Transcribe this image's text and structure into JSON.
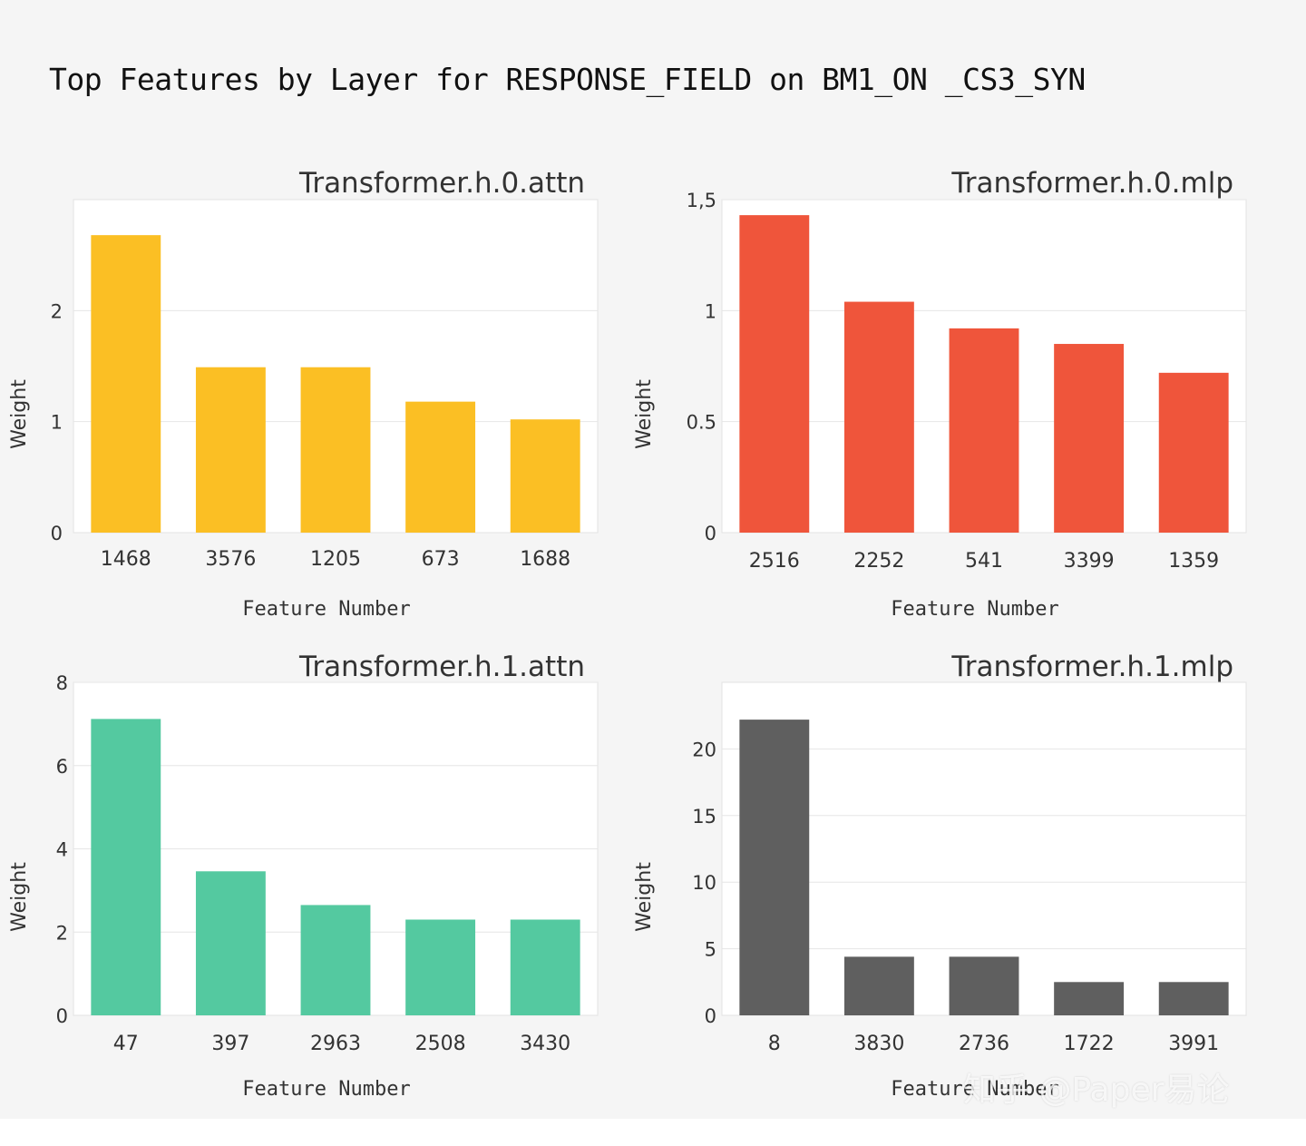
{
  "title": "Top Features by Layer for RESPONSE_FIELD on BM1_ON _CS3_SYN",
  "watermark": "知乎 @Paper易论",
  "colors": {
    "background": "#f5f5f5",
    "plot_bg": "#ffffff",
    "grid": "#e6e6e6",
    "text": "#333333"
  },
  "chart_data": [
    {
      "type": "bar",
      "title": "Transformer.h.0.attn",
      "xlabel": "Feature Number",
      "ylabel": "Weight",
      "categories": [
        "1468",
        "3576",
        "1205",
        "673",
        "1688"
      ],
      "values": [
        2.68,
        1.49,
        1.49,
        1.18,
        1.02
      ],
      "ylim": [
        0,
        3.0
      ],
      "yticks": [
        0,
        1,
        2
      ],
      "ytick_labels": [
        "0",
        "1",
        "2"
      ],
      "color": "#fbbf24",
      "grid": true
    },
    {
      "type": "bar",
      "title": "Transformer.h.0.mlp",
      "xlabel": "Feature Number",
      "ylabel": "Weight",
      "categories": [
        "2516",
        "2252",
        "541",
        "3399",
        "1359"
      ],
      "values": [
        1.43,
        1.04,
        0.92,
        0.85,
        0.72
      ],
      "ylim": [
        0,
        1.5
      ],
      "yticks": [
        0,
        0.5,
        1,
        1.5
      ],
      "ytick_labels": [
        "0",
        "0.5",
        "1",
        "1,5"
      ],
      "color": "#ef553b",
      "grid": true
    },
    {
      "type": "bar",
      "title": "Transformer.h.1.attn",
      "xlabel": "Feature Number",
      "ylabel": "Weight",
      "categories": [
        "47",
        "397",
        "2963",
        "2508",
        "3430"
      ],
      "values": [
        7.12,
        3.46,
        2.65,
        2.3,
        2.3
      ],
      "ylim": [
        0,
        8
      ],
      "yticks": [
        0,
        2,
        4,
        6,
        8
      ],
      "ytick_labels": [
        "0",
        "2",
        "4",
        "6",
        "8"
      ],
      "color": "#54c9a0",
      "grid": true
    },
    {
      "type": "bar",
      "title": "Transformer.h.1.mlp",
      "xlabel": "Feature Number",
      "ylabel": "Weight",
      "categories": [
        "8",
        "3830",
        "2736",
        "1722",
        "3991"
      ],
      "values": [
        22.2,
        4.4,
        4.4,
        2.5,
        2.5
      ],
      "ylim": [
        0,
        25
      ],
      "yticks": [
        0,
        5,
        10,
        15,
        20
      ],
      "ytick_labels": [
        "0",
        "5",
        "10",
        "15",
        "20"
      ],
      "color": "#5f5f5f",
      "grid": true
    }
  ]
}
